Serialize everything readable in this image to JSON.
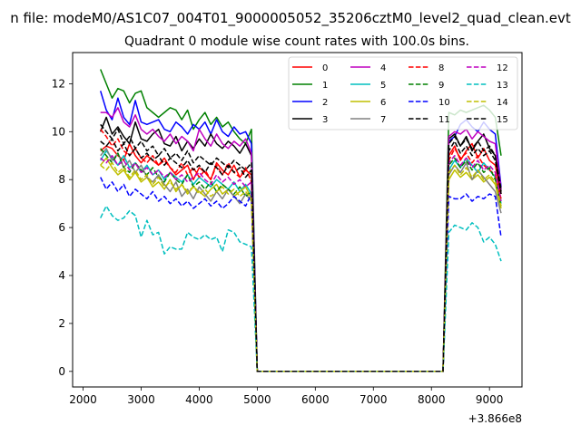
{
  "figure": {
    "suptitle": "n file: modeM0/AS1C07_004T01_9000005052_35206cztM0_level2_quad_clean.evt"
  },
  "chart_data": {
    "type": "line",
    "title": "Quadrant 0 module wise count rates with 100.0s bins.",
    "xlabel": "",
    "ylabel": "",
    "x_offset_label": "+3.866e8",
    "xlim": [
      1820,
      9560
    ],
    "ylim": [
      -0.65,
      13.3
    ],
    "xticks": [
      2000,
      3000,
      4000,
      5000,
      6000,
      7000,
      8000,
      9000
    ],
    "xtick_labels": [
      "2000",
      "3000",
      "4000",
      "5000",
      "6000",
      "7000",
      "8000",
      "9000"
    ],
    "yticks": [
      0,
      2,
      4,
      6,
      8,
      10,
      12
    ],
    "ytick_labels": [
      "0",
      "2",
      "4",
      "6",
      "8",
      "10",
      "12"
    ],
    "grid": false,
    "legend_position": "top-right",
    "legend_columns": 4,
    "x_seg1": [
      2300,
      2400,
      2500,
      2600,
      2700,
      2800,
      2900,
      3000,
      3100,
      3200,
      3300,
      3400,
      3500,
      3600,
      3700,
      3800,
      3900,
      4000,
      4100,
      4200,
      4300,
      4400,
      4500,
      4600,
      4700,
      4800,
      4900
    ],
    "x_seg2": [
      8300,
      8400,
      8500,
      8600,
      8700,
      8800,
      8900,
      9000,
      9100,
      9200
    ],
    "x_gap": [
      5000,
      5100,
      8100,
      8200
    ],
    "series": [
      {
        "name": "0",
        "color": "#ff0000",
        "dash": "solid",
        "seg1": [
          9.2,
          9.4,
          9.3,
          9.0,
          8.8,
          9.5,
          9.0,
          8.7,
          9.0,
          8.8,
          8.6,
          8.9,
          8.5,
          8.2,
          8.4,
          8.6,
          8.0,
          8.5,
          8.3,
          8.0,
          8.7,
          8.4,
          8.2,
          8.6,
          8.1,
          8.4,
          8.2
        ],
        "seg2": [
          9.0,
          9.4,
          8.8,
          9.2,
          9.5,
          8.9,
          9.3,
          8.8,
          8.6,
          7.4
        ]
      },
      {
        "name": "1",
        "color": "#008000",
        "dash": "solid",
        "seg1": [
          12.6,
          12.0,
          11.4,
          11.8,
          11.7,
          11.2,
          11.6,
          11.7,
          11.0,
          10.8,
          10.6,
          10.8,
          11.0,
          10.9,
          10.5,
          10.9,
          10.1,
          10.5,
          10.8,
          10.3,
          10.6,
          10.2,
          10.4,
          10.0,
          9.7,
          9.5,
          10.1
        ],
        "seg2": [
          10.8,
          10.7,
          10.9,
          10.8,
          10.9,
          11.0,
          11.1,
          10.9,
          10.6,
          9.0
        ]
      },
      {
        "name": "2",
        "color": "#0000ff",
        "dash": "solid",
        "seg1": [
          11.7,
          10.9,
          10.5,
          11.4,
          10.6,
          10.3,
          11.3,
          10.4,
          10.3,
          10.4,
          10.5,
          10.1,
          10.0,
          10.4,
          10.2,
          9.9,
          10.3,
          10.1,
          10.4,
          9.9,
          10.5,
          10.0,
          9.8,
          10.2,
          9.9,
          10.0,
          9.5
        ],
        "seg2": [
          9.6,
          9.8,
          10.3,
          10.5,
          10.2,
          10.0,
          10.4,
          10.1,
          9.9,
          7.7
        ]
      },
      {
        "name": "3",
        "color": "#000000",
        "dash": "solid",
        "seg1": [
          10.0,
          10.6,
          9.9,
          10.2,
          9.8,
          9.5,
          10.4,
          9.7,
          9.6,
          9.9,
          10.1,
          9.5,
          9.4,
          9.8,
          9.2,
          9.6,
          9.3,
          9.7,
          9.4,
          9.9,
          9.5,
          9.3,
          9.6,
          9.4,
          9.1,
          9.5,
          9.0
        ],
        "seg2": [
          9.7,
          9.9,
          9.4,
          9.8,
          9.2,
          9.6,
          9.9,
          9.3,
          9.0,
          7.5
        ]
      },
      {
        "name": "4",
        "color": "#bf00bf",
        "dash": "solid",
        "seg1": [
          10.8,
          10.8,
          10.6,
          11.0,
          10.4,
          10.2,
          10.7,
          10.1,
          9.9,
          10.1,
          9.8,
          9.6,
          9.9,
          9.5,
          9.8,
          9.6,
          9.2,
          10.1,
          9.7,
          9.4,
          9.9,
          9.5,
          9.3,
          9.6,
          9.4,
          9.7,
          9.1
        ],
        "seg2": [
          9.8,
          10.0,
          9.9,
          10.1,
          9.7,
          10.0,
          9.8,
          9.6,
          9.5,
          7.6
        ]
      },
      {
        "name": "5",
        "color": "#00bfbf",
        "dash": "solid",
        "seg1": [
          8.8,
          9.2,
          8.9,
          8.6,
          9.0,
          8.5,
          8.7,
          8.3,
          8.6,
          8.2,
          8.4,
          8.0,
          8.3,
          8.1,
          7.9,
          8.2,
          7.8,
          8.1,
          7.9,
          7.7,
          8.0,
          7.8,
          7.6,
          7.9,
          7.5,
          7.8,
          7.4
        ],
        "seg2": [
          8.4,
          8.8,
          8.5,
          8.9,
          8.6,
          8.3,
          8.7,
          8.4,
          8.1,
          7.0
        ]
      },
      {
        "name": "6",
        "color": "#bfbf00",
        "dash": "solid",
        "seg1": [
          8.6,
          8.9,
          8.5,
          8.2,
          8.4,
          8.0,
          8.3,
          7.9,
          8.1,
          7.7,
          7.9,
          7.6,
          8.0,
          7.5,
          7.8,
          7.4,
          7.7,
          7.5,
          7.3,
          7.6,
          7.8,
          7.4,
          7.6,
          7.3,
          7.5,
          7.7,
          7.2
        ],
        "seg2": [
          8.0,
          8.4,
          8.1,
          8.3,
          8.0,
          8.2,
          7.9,
          8.1,
          7.8,
          6.8
        ]
      },
      {
        "name": "7",
        "color": "#808080",
        "dash": "solid",
        "seg1": [
          9.0,
          9.3,
          8.8,
          9.1,
          8.5,
          8.8,
          8.3,
          8.6,
          8.1,
          7.9,
          8.2,
          7.8,
          7.5,
          7.9,
          7.3,
          7.6,
          7.2,
          7.7,
          7.4,
          7.1,
          7.5,
          7.2,
          7.6,
          7.3,
          7.0,
          7.4,
          7.1
        ],
        "seg2": [
          8.2,
          8.6,
          8.3,
          8.7,
          8.0,
          8.4,
          8.1,
          7.8,
          7.5,
          6.6
        ]
      },
      {
        "name": "8",
        "color": "#ff0000",
        "dash": "dashed",
        "seg1": [
          10.1,
          9.8,
          9.4,
          9.7,
          9.2,
          9.0,
          9.3,
          8.9,
          8.7,
          9.0,
          8.6,
          8.8,
          8.5,
          8.3,
          8.7,
          8.2,
          8.5,
          8.1,
          8.4,
          8.0,
          8.6,
          8.2,
          8.7,
          8.3,
          8.1,
          8.5,
          7.9
        ],
        "seg2": [
          8.8,
          9.3,
          8.9,
          9.1,
          8.7,
          9.0,
          8.6,
          8.4,
          8.2,
          7.2
        ]
      },
      {
        "name": "9",
        "color": "#008000",
        "dash": "dashed",
        "seg1": [
          9.3,
          9.0,
          8.7,
          9.1,
          8.5,
          8.3,
          8.7,
          8.4,
          8.2,
          8.5,
          8.1,
          7.9,
          8.3,
          8.0,
          7.8,
          8.2,
          7.7,
          7.9,
          7.6,
          7.9,
          7.5,
          7.8,
          7.6,
          7.4,
          7.7,
          7.3,
          7.5
        ],
        "seg2": [
          8.6,
          8.9,
          8.5,
          8.8,
          8.4,
          8.7,
          8.3,
          8.5,
          8.0,
          6.9
        ]
      },
      {
        "name": "10",
        "color": "#0000ff",
        "dash": "dashed",
        "seg1": [
          8.1,
          7.6,
          7.9,
          7.5,
          7.8,
          7.3,
          7.6,
          7.4,
          7.2,
          7.5,
          7.1,
          7.3,
          7.0,
          7.2,
          6.9,
          7.1,
          6.8,
          7.0,
          7.2,
          6.9,
          7.1,
          6.8,
          7.0,
          7.3,
          7.1,
          6.9,
          7.4
        ],
        "seg2": [
          7.3,
          7.2,
          7.2,
          7.4,
          7.1,
          7.3,
          7.2,
          7.4,
          7.3,
          5.6
        ]
      },
      {
        "name": "11",
        "color": "#000000",
        "dash": "dashed",
        "seg1": [
          9.6,
          9.4,
          9.7,
          9.2,
          9.5,
          9.0,
          9.3,
          8.9,
          9.1,
          8.8,
          9.0,
          8.6,
          8.9,
          8.7,
          8.5,
          8.8,
          8.4,
          8.6,
          8.3,
          8.7,
          8.5,
          8.2,
          8.6,
          8.3,
          8.5,
          8.1,
          8.4
        ],
        "seg2": [
          9.2,
          9.6,
          9.1,
          9.4,
          9.0,
          9.3,
          9.0,
          9.2,
          8.8,
          7.4
        ]
      },
      {
        "name": "12",
        "color": "#bf00bf",
        "dash": "dashed",
        "seg1": [
          8.9,
          8.7,
          9.0,
          8.6,
          8.8,
          8.4,
          8.7,
          8.3,
          8.5,
          8.2,
          8.4,
          8.1,
          8.3,
          8.0,
          8.2,
          7.9,
          8.1,
          8.3,
          8.0,
          7.8,
          8.2,
          7.9,
          8.1,
          7.8,
          8.0,
          7.7,
          7.9
        ],
        "seg2": [
          8.7,
          9.0,
          8.6,
          8.9,
          8.5,
          8.8,
          8.4,
          8.6,
          8.3,
          7.1
        ]
      },
      {
        "name": "13",
        "color": "#00bfbf",
        "dash": "dashed",
        "seg1": [
          6.4,
          6.9,
          6.5,
          6.3,
          6.4,
          6.7,
          6.5,
          5.6,
          6.3,
          5.7,
          5.8,
          4.9,
          5.2,
          5.1,
          5.1,
          5.8,
          5.6,
          5.5,
          5.7,
          5.5,
          5.6,
          5.0,
          5.9,
          5.8,
          5.4,
          5.3,
          5.2
        ],
        "seg2": [
          5.8,
          6.1,
          6.0,
          5.9,
          6.2,
          6.0,
          5.4,
          5.6,
          5.3,
          4.6
        ]
      },
      {
        "name": "14",
        "color": "#bfbf00",
        "dash": "dashed",
        "seg1": [
          8.6,
          8.4,
          8.7,
          8.3,
          8.5,
          8.1,
          8.4,
          8.0,
          8.2,
          7.8,
          8.1,
          7.7,
          7.9,
          7.6,
          7.8,
          7.5,
          7.7,
          7.4,
          7.6,
          7.3,
          7.5,
          7.7,
          7.4,
          7.6,
          7.3,
          7.5,
          7.2
        ],
        "seg2": [
          8.3,
          8.6,
          8.2,
          8.5,
          8.1,
          8.4,
          8.0,
          8.2,
          7.9,
          6.9
        ]
      },
      {
        "name": "15",
        "color": "#000000",
        "dash": "dashed",
        "seg1": [
          10.3,
          10.0,
          9.7,
          10.1,
          9.5,
          9.8,
          9.3,
          9.6,
          9.2,
          9.4,
          9.0,
          9.3,
          8.9,
          9.1,
          8.8,
          9.2,
          8.7,
          9.0,
          8.8,
          8.6,
          8.9,
          8.7,
          8.5,
          8.8,
          8.6,
          8.4,
          8.7
        ],
        "seg2": [
          9.5,
          9.8,
          9.4,
          9.7,
          9.3,
          9.6,
          9.2,
          9.4,
          9.0,
          7.6
        ]
      }
    ]
  }
}
